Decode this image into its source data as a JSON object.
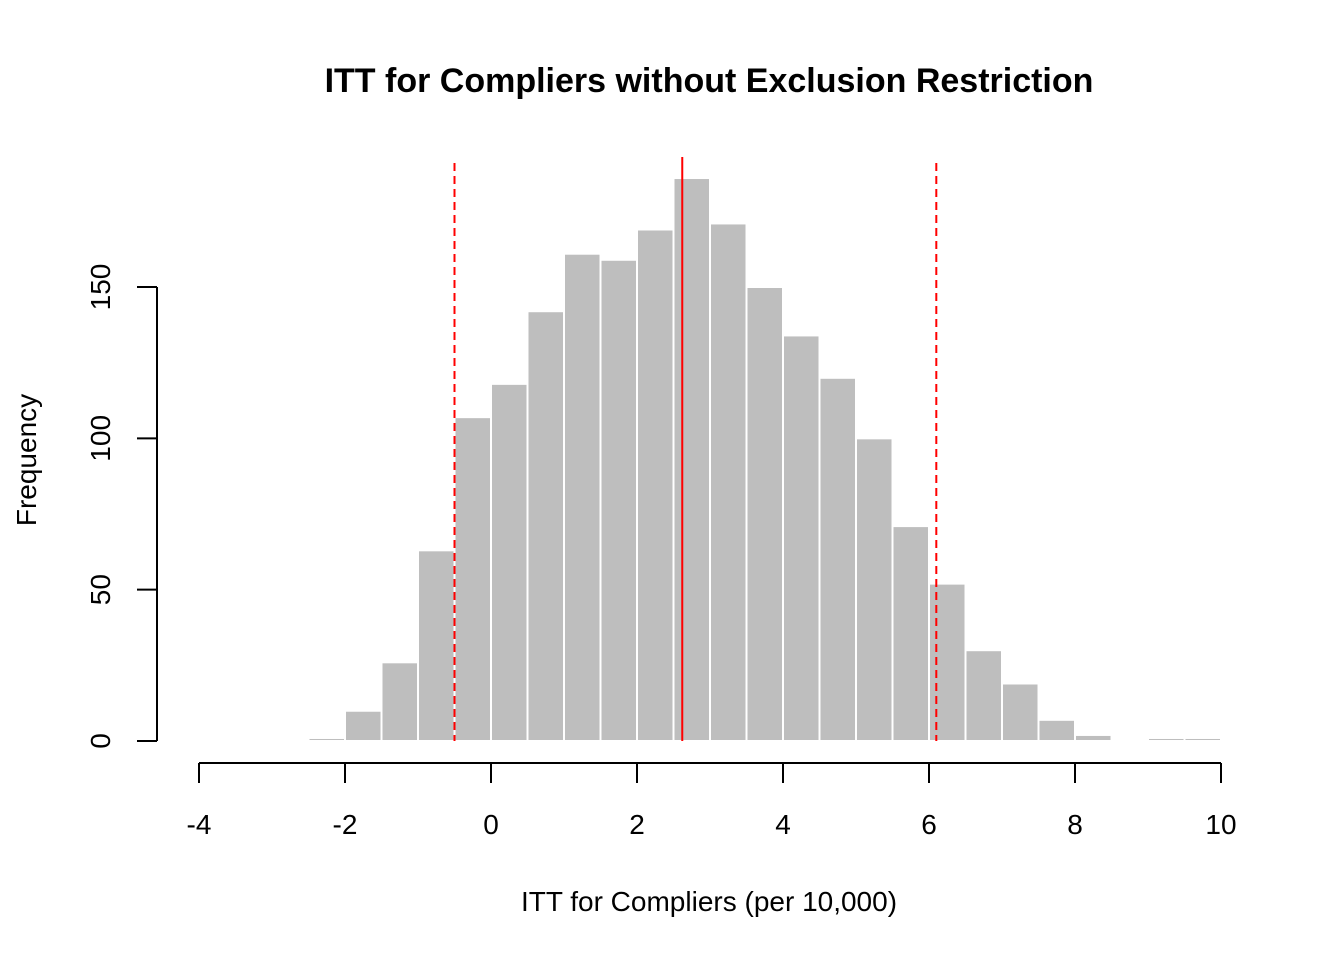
{
  "chart_data": {
    "type": "bar",
    "title": "ITT for Compliers without Exclusion Restriction",
    "xlabel": "ITT for Compliers (per 10,000)",
    "ylabel": "Frequency",
    "xlim": [
      -4,
      10
    ],
    "ylim": [
      0,
      185
    ],
    "xticks": [
      -4,
      -2,
      0,
      2,
      4,
      6,
      8,
      10
    ],
    "yticks": [
      0,
      50,
      100,
      150
    ],
    "bins": [
      {
        "x0": -2.5,
        "x1": -2.0,
        "count": 1
      },
      {
        "x0": -2.0,
        "x1": -1.5,
        "count": 10
      },
      {
        "x0": -1.5,
        "x1": -1.0,
        "count": 26
      },
      {
        "x0": -1.0,
        "x1": -0.5,
        "count": 63
      },
      {
        "x0": -0.5,
        "x1": 0.0,
        "count": 107
      },
      {
        "x0": 0.0,
        "x1": 0.5,
        "count": 118
      },
      {
        "x0": 0.5,
        "x1": 1.0,
        "count": 142
      },
      {
        "x0": 1.0,
        "x1": 1.5,
        "count": 161
      },
      {
        "x0": 1.5,
        "x1": 2.0,
        "count": 159
      },
      {
        "x0": 2.0,
        "x1": 2.5,
        "count": 169
      },
      {
        "x0": 2.5,
        "x1": 3.0,
        "count": 186
      },
      {
        "x0": 3.0,
        "x1": 3.5,
        "count": 171
      },
      {
        "x0": 3.5,
        "x1": 4.0,
        "count": 150
      },
      {
        "x0": 4.0,
        "x1": 4.5,
        "count": 134
      },
      {
        "x0": 4.5,
        "x1": 5.0,
        "count": 120
      },
      {
        "x0": 5.0,
        "x1": 5.5,
        "count": 100
      },
      {
        "x0": 5.5,
        "x1": 6.0,
        "count": 71
      },
      {
        "x0": 6.0,
        "x1": 6.5,
        "count": 52
      },
      {
        "x0": 6.5,
        "x1": 7.0,
        "count": 30
      },
      {
        "x0": 7.0,
        "x1": 7.5,
        "count": 19
      },
      {
        "x0": 7.5,
        "x1": 8.0,
        "count": 7
      },
      {
        "x0": 8.0,
        "x1": 8.5,
        "count": 2
      },
      {
        "x0": 8.5,
        "x1": 9.0,
        "count": 0
      },
      {
        "x0": 9.0,
        "x1": 9.5,
        "count": 1
      },
      {
        "x0": 9.5,
        "x1": 10.0,
        "count": 1
      }
    ],
    "reference_lines": [
      {
        "x": 2.62,
        "style": "solid",
        "color": "#ff0000"
      },
      {
        "x": -0.5,
        "style": "dashed",
        "color": "#ff0000"
      },
      {
        "x": 6.1,
        "style": "dashed",
        "color": "#ff0000"
      }
    ],
    "bar_color": "#bebebe",
    "grid": false
  }
}
